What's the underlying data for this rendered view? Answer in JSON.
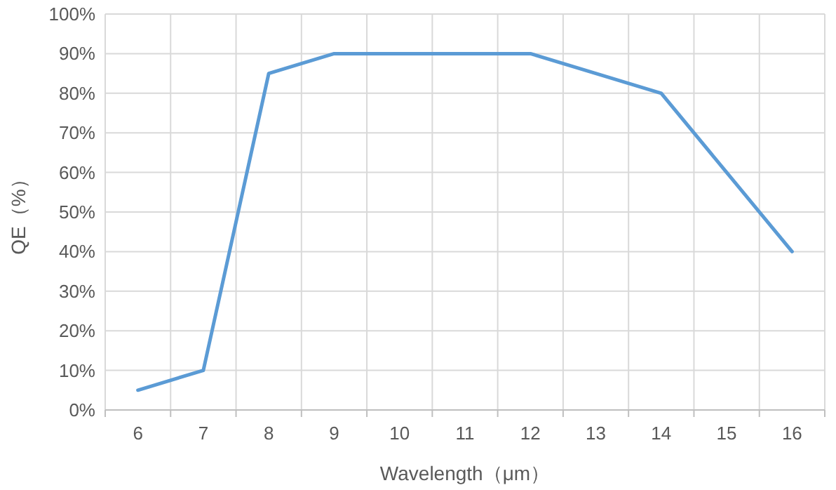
{
  "chart_data": {
    "type": "line",
    "xlabel": "Wavelength（μm）",
    "ylabel": "QE（%）",
    "categories": [
      "6",
      "7",
      "8",
      "9",
      "10",
      "11",
      "12",
      "13",
      "14",
      "15",
      "16"
    ],
    "series": [
      {
        "color": "#5b9bd5",
        "values": [
          5,
          10,
          85,
          90,
          90,
          90,
          90,
          85,
          80,
          60,
          40
        ]
      }
    ],
    "ylim": [
      0,
      100
    ],
    "yticks": [
      {
        "value": 0,
        "label": "0%"
      },
      {
        "value": 10,
        "label": "10%"
      },
      {
        "value": 20,
        "label": "20%"
      },
      {
        "value": 30,
        "label": "30%"
      },
      {
        "value": 40,
        "label": "40%"
      },
      {
        "value": 50,
        "label": "50%"
      },
      {
        "value": 60,
        "label": "60%"
      },
      {
        "value": 70,
        "label": "70%"
      },
      {
        "value": 80,
        "label": "80%"
      },
      {
        "value": 90,
        "label": "90%"
      },
      {
        "value": 100,
        "label": "100%"
      }
    ],
    "grid": true,
    "marker": "none",
    "line_style": "solid"
  }
}
